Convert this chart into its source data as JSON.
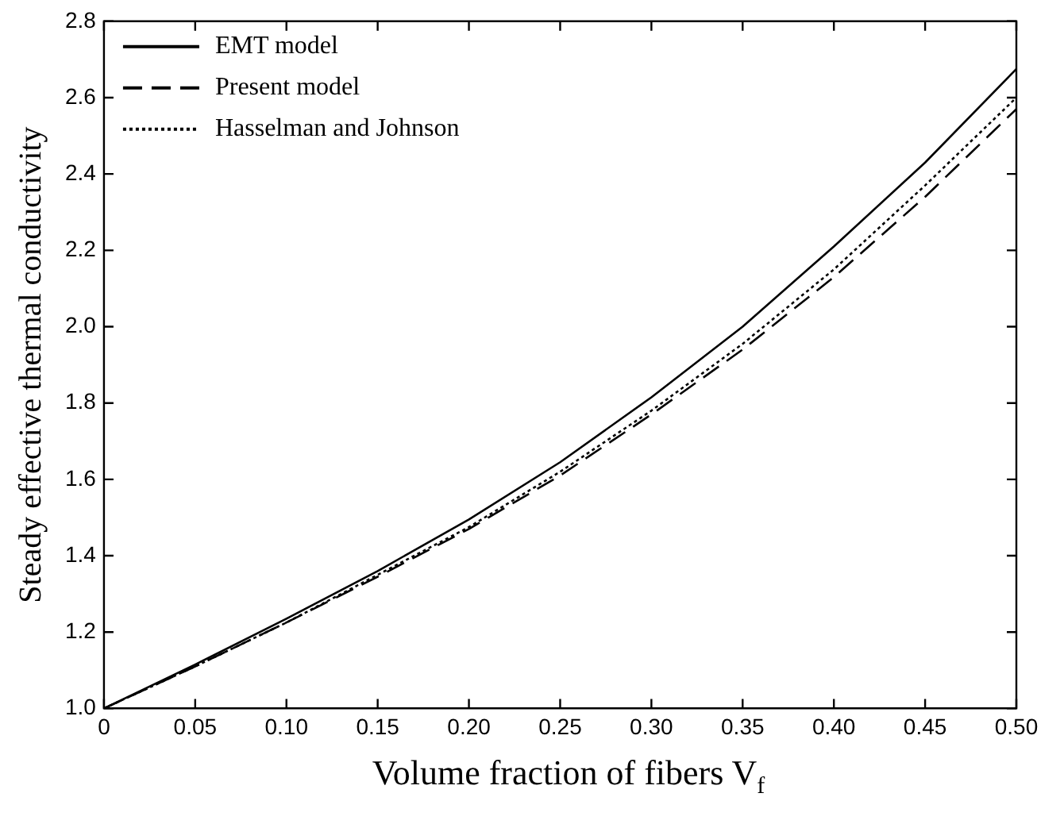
{
  "chart_data": {
    "type": "line",
    "xlabel": "Volume fraction of fibers  V$_{f}$",
    "ylabel": "Steady effective thermal conductivity",
    "x": [
      0,
      0.05,
      0.1,
      0.15,
      0.2,
      0.25,
      0.3,
      0.35,
      0.4,
      0.45,
      0.5
    ],
    "series": [
      {
        "name": "EMT model",
        "color": "#000000",
        "line_style": "solid",
        "values": [
          1.0,
          1.115,
          1.235,
          1.36,
          1.495,
          1.645,
          1.815,
          2.0,
          2.21,
          2.43,
          2.675
        ]
      },
      {
        "name": "Present model",
        "color": "#000000",
        "line_style": "dashed",
        "values": [
          1.0,
          1.11,
          1.225,
          1.345,
          1.47,
          1.61,
          1.77,
          1.94,
          2.13,
          2.34,
          2.57
        ]
      },
      {
        "name": "Hasselman and Johnson",
        "color": "#000000",
        "line_style": "dotted",
        "values": [
          1.0,
          1.11,
          1.225,
          1.35,
          1.475,
          1.62,
          1.78,
          1.955,
          2.15,
          2.37,
          2.6
        ]
      }
    ],
    "xlim": [
      0,
      0.5
    ],
    "ylim": [
      1.0,
      2.8
    ],
    "xticks": [
      0,
      {
        "value": 0.05,
        "label": "0.05"
      },
      {
        "value": 0.1,
        "label": "0.10"
      },
      {
        "value": 0.15,
        "label": "0.15"
      },
      {
        "value": 0.2,
        "label": "0.20"
      },
      {
        "value": 0.25,
        "label": "0.25"
      },
      {
        "value": 0.3,
        "label": "0.30"
      },
      {
        "value": 0.35,
        "label": "0.35"
      },
      {
        "value": 0.4,
        "label": "0.40"
      },
      {
        "value": 0.45,
        "label": "0.45"
      },
      {
        "value": 0.5,
        "label": "0.50"
      }
    ],
    "yticks": [
      {
        "value": 1,
        "label": "1.0"
      },
      1.2,
      1.4,
      1.6,
      1.8,
      {
        "value": 2,
        "label": "2.0"
      },
      2.2,
      2.4,
      2.6,
      2.8
    ],
    "legend": "top left",
    "grid": false,
    "marker": "none"
  }
}
